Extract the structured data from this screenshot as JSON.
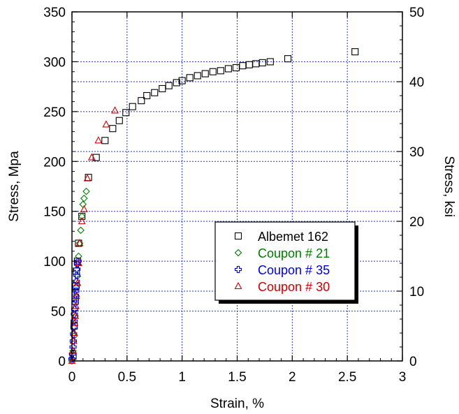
{
  "chart_data": {
    "type": "scatter",
    "title": "",
    "xlabel": "Strain, %",
    "ylabel": "Stress, Mpa",
    "y2label": "Stress, ksi",
    "xlim": [
      0,
      3
    ],
    "ylim": [
      0,
      350
    ],
    "y2lim": [
      0,
      50
    ],
    "xticks": [
      "0",
      "0.5",
      "1",
      "1.5",
      "2",
      "2.5",
      "3"
    ],
    "yticks": [
      "0",
      "50",
      "100",
      "150",
      "200",
      "250",
      "300",
      "350"
    ],
    "y2ticks": [
      "0",
      "10",
      "20",
      "30",
      "40",
      "50"
    ],
    "grid": true,
    "legend_position": "lower-right",
    "series": [
      {
        "name": "Albemet 162",
        "marker": "square",
        "color": "#000000",
        "x": [
          0.01,
          0.02,
          0.03,
          0.035,
          0.04,
          0.05,
          0.06,
          0.09,
          0.15,
          0.22,
          0.3,
          0.37,
          0.43,
          0.49,
          0.55,
          0.63,
          0.68,
          0.75,
          0.82,
          0.88,
          0.95,
          1.0,
          1.07,
          1.14,
          1.21,
          1.28,
          1.35,
          1.42,
          1.49,
          1.55,
          1.61,
          1.67,
          1.73,
          1.8,
          1.96,
          2.57
        ],
        "y": [
          5,
          35,
          60,
          75,
          90,
          100,
          118,
          145,
          184,
          204,
          221,
          233,
          241,
          249,
          255,
          261,
          266,
          269,
          273,
          276,
          279,
          281,
          284,
          286,
          288,
          290,
          291,
          293,
          294,
          296,
          297,
          298,
          299,
          300,
          303,
          310
        ]
      },
      {
        "name": "Coupon # 21",
        "marker": "diamond",
        "color": "#007a00",
        "x": [
          0.0,
          0.01,
          0.02,
          0.03,
          0.04,
          0.05,
          0.06,
          0.07,
          0.08,
          0.09,
          0.1,
          0.11,
          0.13
        ],
        "y": [
          0,
          10,
          25,
          45,
          65,
          85,
          105,
          118,
          131,
          145,
          157,
          163,
          170
        ]
      },
      {
        "name": "Coupon # 35",
        "marker": "cross",
        "color": "#0000d0",
        "x": [
          0.0,
          0.005,
          0.01,
          0.012,
          0.015,
          0.018,
          0.02,
          0.022,
          0.025,
          0.028,
          0.03,
          0.032,
          0.035,
          0.038,
          0.04,
          0.042,
          0.045,
          0.05,
          0.055
        ],
        "y": [
          2,
          7,
          14,
          20,
          27,
          34,
          40,
          47,
          52,
          58,
          62,
          66,
          70,
          74,
          80,
          86,
          92,
          97,
          100
        ]
      },
      {
        "name": "Coupon # 30",
        "marker": "triangle",
        "color": "#cc0000",
        "x": [
          0.0,
          0.01,
          0.015,
          0.02,
          0.025,
          0.03,
          0.035,
          0.04,
          0.05,
          0.06,
          0.07,
          0.09,
          0.11,
          0.14,
          0.18,
          0.24,
          0.31,
          0.39
        ],
        "y": [
          0,
          10,
          20,
          28,
          38,
          45,
          55,
          65,
          78,
          98,
          118,
          140,
          152,
          183,
          204,
          221,
          237,
          251
        ]
      }
    ]
  }
}
